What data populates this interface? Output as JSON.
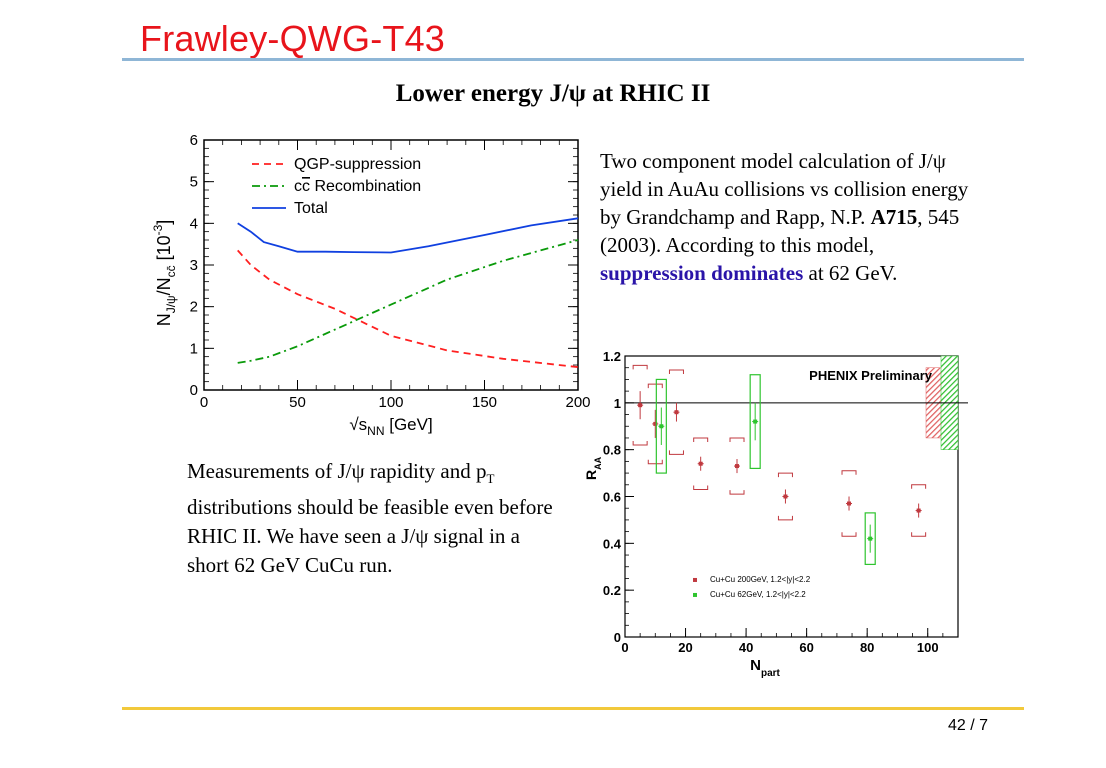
{
  "slide": {
    "title": "Frawley-QWG-T43",
    "heading": "Lower energy J/ψ  at RHIC II",
    "page": "42 / 7"
  },
  "text_right": {
    "part1": "Two component model calculation of J/ψ yield in AuAu collisions vs collision energy by Grandchamp and Rapp, N.P. ",
    "ref_bold": "A715",
    "part2": ", 545 (2003). According to this model, ",
    "highlight": "suppression dominates",
    "part3": " at 62 GeV."
  },
  "text_left": {
    "part1": "Measurements of J/ψ rapidity and p",
    "sub": "T",
    "part2": " distributions should be feasible even before RHIC II. We have seen a J/ψ signal in a short 62 GeV CuCu run."
  },
  "chart_data": [
    {
      "type": "line",
      "xlabel": "√s",
      "xlabel_sub": "NN",
      "xlabel_unit": " [GeV]",
      "ylabel": "N",
      "ylabel_sub1": "J/ψ",
      "ylabel_mid": "/N",
      "ylabel_sub2": "cc̄",
      "ylabel_unit": "  [10",
      "ylabel_exp": "-3",
      "ylabel_close": "]",
      "xlim": [
        0,
        200
      ],
      "ylim": [
        0,
        6
      ],
      "xticks": [
        "0",
        "50",
        "100",
        "150",
        "200"
      ],
      "yticks": [
        "0",
        "1",
        "2",
        "3",
        "4",
        "5",
        "6"
      ],
      "legend_position": "top-left",
      "series": [
        {
          "name": "QGP-suppression",
          "color": "#ff2020",
          "dash": "dashed",
          "x": [
            18,
            25,
            35,
            50,
            70,
            100,
            130,
            160,
            200
          ],
          "y": [
            3.35,
            3.0,
            2.65,
            2.3,
            1.95,
            1.3,
            0.95,
            0.75,
            0.55
          ]
        },
        {
          "name": "cc̄ Recombination",
          "color": "#0a9a0a",
          "dash": "dashdot",
          "x": [
            18,
            25,
            35,
            50,
            70,
            100,
            130,
            160,
            200
          ],
          "y": [
            0.65,
            0.7,
            0.8,
            1.05,
            1.45,
            2.05,
            2.65,
            3.1,
            3.6
          ],
          "label_prefix": "c",
          "label_over": "c",
          "label_suffix": " Recombination"
        },
        {
          "name": "Total",
          "color": "#1040e0",
          "dash": "solid",
          "x": [
            18,
            25,
            32,
            40,
            50,
            65,
            80,
            100,
            120,
            150,
            175,
            200
          ],
          "y": [
            4.0,
            3.8,
            3.55,
            3.45,
            3.32,
            3.32,
            3.31,
            3.3,
            3.45,
            3.72,
            3.95,
            4.12
          ]
        }
      ]
    },
    {
      "type": "scatter",
      "title": "PHENIX Preliminary",
      "xlabel": "N",
      "xlabel_sub": "part",
      "ylabel": "R",
      "ylabel_sub": "AA",
      "xlim": [
        0,
        110
      ],
      "ylim": [
        0,
        1.2
      ],
      "xticks": [
        "0",
        "20",
        "40",
        "60",
        "80",
        "100"
      ],
      "yticks": [
        "0",
        "0.2",
        "0.4",
        "0.6",
        "0.8",
        "1",
        "1.2"
      ],
      "reference_line": 1.0,
      "series": [
        {
          "name": "Cu+Cu 200GeV, 1.2<|y|<2.2",
          "color": "#c0393f",
          "x": [
            5,
            10,
            17,
            25,
            37,
            53,
            74,
            97
          ],
          "y": [
            0.99,
            0.91,
            0.96,
            0.74,
            0.73,
            0.6,
            0.57,
            0.54
          ],
          "stat": [
            0.06,
            0.06,
            0.04,
            0.03,
            0.03,
            0.03,
            0.03,
            0.03
          ],
          "sys": [
            0.17,
            0.17,
            0.18,
            0.11,
            0.12,
            0.1,
            0.14,
            0.11
          ]
        },
        {
          "name": "Cu+Cu 62GeV,  1.2<|y|<2.2",
          "color": "#2ec42e",
          "x": [
            12,
            43,
            81
          ],
          "y": [
            0.9,
            0.92,
            0.42
          ],
          "stat": [
            0.08,
            0.08,
            0.06
          ],
          "sys": [
            0.2,
            0.2,
            0.11
          ]
        }
      ],
      "global_bands": [
        {
          "color": "#e06060",
          "pattern": "hatched",
          "ylo": 0.85,
          "yhi": 1.15
        },
        {
          "color": "#30c030",
          "pattern": "hatched",
          "ylo": 0.8,
          "yhi": 1.2
        }
      ]
    }
  ]
}
